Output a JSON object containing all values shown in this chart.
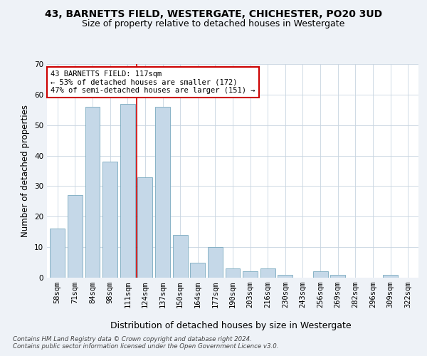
{
  "title": "43, BARNETTS FIELD, WESTERGATE, CHICHESTER, PO20 3UD",
  "subtitle": "Size of property relative to detached houses in Westergate",
  "xlabel": "Distribution of detached houses by size in Westergate",
  "ylabel": "Number of detached properties",
  "categories": [
    "58sqm",
    "71sqm",
    "84sqm",
    "98sqm",
    "111sqm",
    "124sqm",
    "137sqm",
    "150sqm",
    "164sqm",
    "177sqm",
    "190sqm",
    "203sqm",
    "216sqm",
    "230sqm",
    "243sqm",
    "256sqm",
    "269sqm",
    "282sqm",
    "296sqm",
    "309sqm",
    "322sqm"
  ],
  "values": [
    16,
    27,
    56,
    38,
    57,
    33,
    56,
    14,
    5,
    10,
    3,
    2,
    3,
    1,
    0,
    2,
    1,
    0,
    0,
    1,
    0
  ],
  "bar_color": "#c5d8e8",
  "bar_edge_color": "#7aaabf",
  "annotation_text": "43 BARNETTS FIELD: 117sqm\n← 53% of detached houses are smaller (172)\n47% of semi-detached houses are larger (151) →",
  "annotation_box_color": "#ffffff",
  "annotation_box_edge": "#cc0000",
  "vline_color": "#cc0000",
  "vline_x_index": 4.5,
  "ylim": [
    0,
    70
  ],
  "yticks": [
    0,
    10,
    20,
    30,
    40,
    50,
    60,
    70
  ],
  "footer1": "Contains HM Land Registry data © Crown copyright and database right 2024.",
  "footer2": "Contains public sector information licensed under the Open Government Licence v3.0.",
  "background_color": "#eef2f7",
  "plot_bg_color": "#ffffff",
  "grid_color": "#c8d4e0",
  "title_fontsize": 10,
  "subtitle_fontsize": 9,
  "xlabel_fontsize": 9,
  "ylabel_fontsize": 8.5,
  "tick_fontsize": 7.5,
  "footer_fontsize": 6.2
}
